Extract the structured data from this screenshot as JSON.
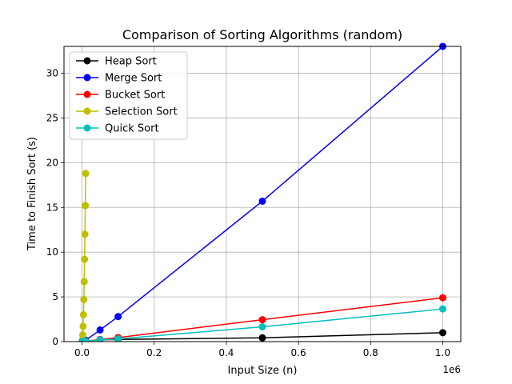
{
  "chart_data": {
    "type": "line",
    "title": "Comparison of Sorting Algorithms (random)",
    "xlabel": "Input Size (n)",
    "ylabel": "Time to Finish Sort (s)",
    "x_offset_label": "1e6",
    "xlim": [
      -50000,
      1050000
    ],
    "ylim": [
      0,
      33
    ],
    "x_ticks": [
      0,
      200000,
      400000,
      600000,
      800000,
      1000000
    ],
    "x_tick_labels": [
      "0.0",
      "0.2",
      "0.4",
      "0.6",
      "0.8",
      "1.0"
    ],
    "y_ticks": [
      0,
      5,
      10,
      15,
      20,
      25,
      30
    ],
    "y_tick_labels": [
      "0",
      "5",
      "10",
      "15",
      "20",
      "25",
      "30"
    ],
    "grid": true,
    "legend_position": "top-left",
    "series": [
      {
        "name": "Heap Sort",
        "color": "#000000",
        "x": [
          100,
          1000,
          5000,
          10000,
          50000,
          100000,
          500000,
          1000000
        ],
        "y": [
          0.0,
          0.003,
          0.02,
          0.04,
          0.2,
          0.25,
          0.42,
          1.0
        ]
      },
      {
        "name": "Merge Sort",
        "color": "#0000ff",
        "x": [
          100,
          1000,
          5000,
          10000,
          50000,
          100000,
          500000,
          1000000
        ],
        "y": [
          0.0,
          0.02,
          0.1,
          0.15,
          1.3,
          2.8,
          15.7,
          33.0
        ]
      },
      {
        "name": "Bucket Sort",
        "color": "#ff0000",
        "x": [
          100,
          1000,
          5000,
          10000,
          50000,
          100000,
          500000,
          1000000
        ],
        "y": [
          0.0,
          0.005,
          0.03,
          0.05,
          0.25,
          0.45,
          2.45,
          4.9
        ]
      },
      {
        "name": "Selection Sort",
        "color": "#bfbf00",
        "x": [
          100,
          1000,
          2000,
          3000,
          4000,
          5000,
          6000,
          7000,
          8000,
          9000,
          10000
        ],
        "y": [
          0.0,
          0.2,
          0.75,
          1.7,
          3.0,
          4.7,
          6.7,
          9.2,
          12.0,
          15.2,
          18.8
        ]
      },
      {
        "name": "Quick Sort",
        "color": "#00bfbf",
        "x": [
          100,
          1000,
          5000,
          10000,
          50000,
          100000,
          500000,
          1000000
        ],
        "y": [
          0.0,
          0.004,
          0.02,
          0.035,
          0.2,
          0.3,
          1.65,
          3.65
        ]
      }
    ]
  }
}
